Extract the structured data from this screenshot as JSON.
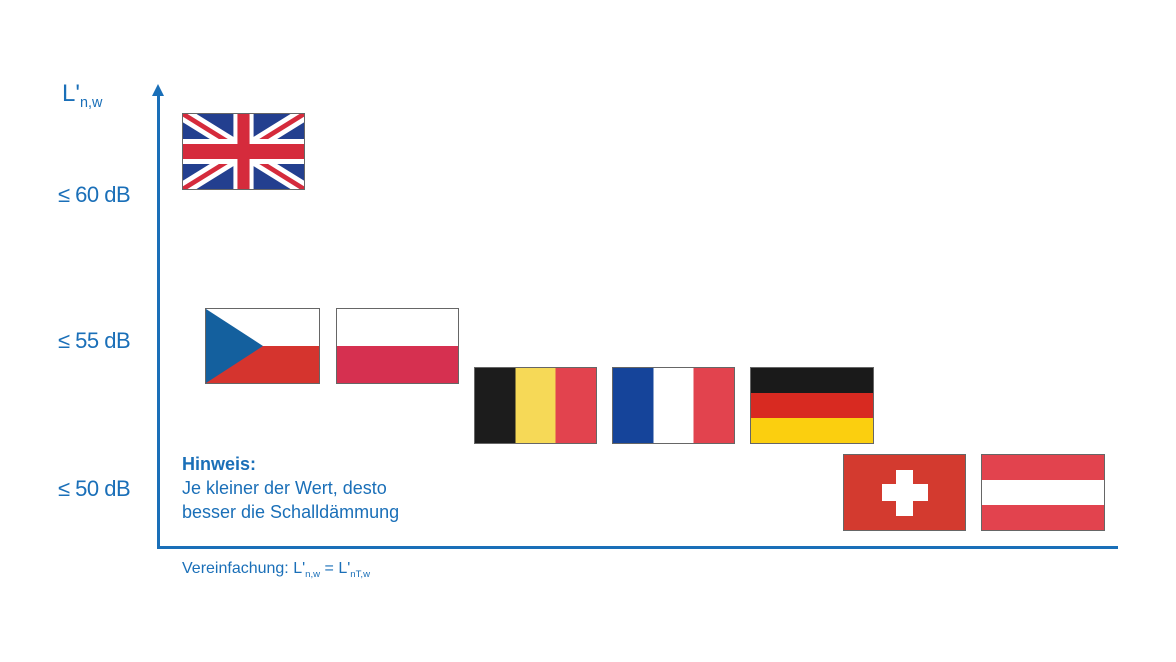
{
  "chart_data": {
    "type": "diagram",
    "ylabel": "L'n,w",
    "ylabel_main": "L'",
    "ylabel_sub": "n,w",
    "y_ticks": [
      "≤ 60 dB",
      "≤ 55 dB",
      "≤ 50 dB"
    ],
    "countries": [
      {
        "name": "United Kingdom",
        "flag": "uk-flag"
      },
      {
        "name": "Czech Republic",
        "flag": "cz-flag"
      },
      {
        "name": "Poland",
        "flag": "pl-flag"
      },
      {
        "name": "Belgium",
        "flag": "be-flag"
      },
      {
        "name": "France",
        "flag": "fr-flag"
      },
      {
        "name": "Germany",
        "flag": "de-flag"
      },
      {
        "name": "Switzerland",
        "flag": "ch-flag"
      },
      {
        "name": "Austria",
        "flag": "at-flag"
      }
    ],
    "axis_color": "#1a6fb8"
  },
  "hint": {
    "title": "Hinweis:",
    "line1": "Je kleiner der Wert, desto",
    "line2": "besser die Schalldämmung"
  },
  "note": {
    "prefix": "Vereinfachung: L'",
    "sub1": "n,w",
    "mid": " = L'",
    "sub2": "nT,w"
  }
}
